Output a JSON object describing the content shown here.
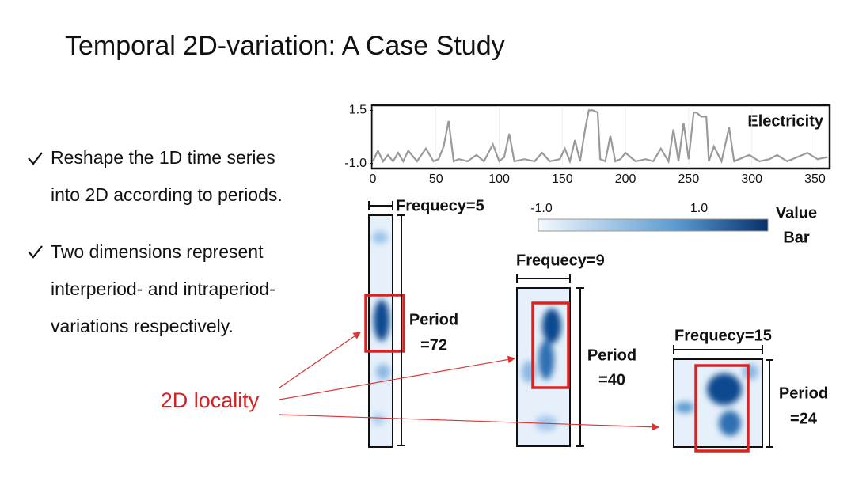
{
  "title": "Temporal 2D-variation: A Case Study",
  "bullets": [
    [
      "Reshape the 1D time series",
      "into 2D according to periods."
    ],
    [
      "Two dimensions represent",
      "interperiod- and intraperiod-",
      "variations respectively."
    ]
  ],
  "chart_data": {
    "type": "line",
    "label": "Electricity",
    "color": "#9a9a9a",
    "x": [
      0,
      4,
      8,
      12,
      16,
      20,
      24,
      28,
      35,
      42,
      48,
      52,
      56,
      60,
      64,
      68,
      75,
      82,
      88,
      95,
      100,
      104,
      108,
      112,
      120,
      128,
      134,
      140,
      148,
      152,
      156,
      160,
      164,
      168,
      171,
      174,
      178,
      180,
      184,
      188,
      192,
      196,
      200,
      208,
      216,
      222,
      228,
      234,
      238,
      242,
      246,
      250,
      254,
      256,
      260,
      264,
      266,
      270,
      276,
      282,
      286,
      290,
      298,
      306,
      314,
      320,
      328,
      336,
      344,
      352,
      360
    ],
    "values": [
      -0.9,
      -0.4,
      -0.9,
      -0.6,
      -0.9,
      -0.5,
      -0.9,
      -0.4,
      -0.9,
      -0.3,
      -0.9,
      -0.8,
      -0.2,
      1.0,
      -0.9,
      -0.8,
      -0.9,
      -0.6,
      -0.9,
      -0.1,
      -0.9,
      -0.7,
      0.4,
      -0.9,
      -0.8,
      -0.9,
      -0.5,
      -0.9,
      -0.8,
      -0.3,
      -0.9,
      0.1,
      -0.9,
      0.6,
      1.5,
      1.5,
      1.4,
      -0.8,
      -0.9,
      0.3,
      -0.9,
      -0.8,
      -0.5,
      -0.9,
      -0.8,
      -0.9,
      -0.3,
      -0.9,
      0.6,
      -0.9,
      0.9,
      -0.8,
      1.4,
      1.4,
      1.2,
      1.2,
      -0.9,
      -0.2,
      -0.9,
      0.7,
      -0.9,
      -0.8,
      -0.6,
      -0.9,
      -0.8,
      -0.6,
      -0.9,
      -0.7,
      -0.5,
      -0.8,
      -0.7
    ],
    "xlim": [
      0,
      361
    ],
    "ylim": [
      -1.2,
      1.7
    ],
    "xticks": [
      0,
      50,
      100,
      150,
      200,
      250,
      300,
      350
    ],
    "yticks": [
      {
        "value": -1.0,
        "label": "-1.0"
      },
      1.5
    ]
  },
  "colorbar": {
    "labels": [
      "-1.0",
      "1.0"
    ],
    "title": [
      "Value",
      "Bar"
    ]
  },
  "panels": [
    {
      "frequency": "Frequecy=5",
      "period": [
        "Period",
        "=72"
      ]
    },
    {
      "frequency": "Frequecy=9",
      "period": [
        "Period",
        "=40"
      ]
    },
    {
      "frequency": "Frequecy=15",
      "period": [
        "Period",
        "=24"
      ]
    }
  ],
  "annotation": "2D locality"
}
